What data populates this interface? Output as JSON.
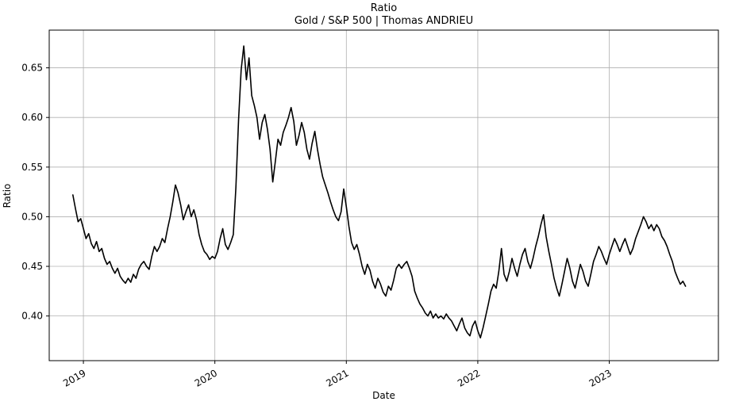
{
  "chart_data": {
    "type": "line",
    "title": "Ratio",
    "subtitle": "Gold / S&P 500 | Thomas ANDRIEU",
    "xlabel": "Date",
    "ylabel": "Ratio",
    "xlim": [
      2018.74,
      2023.83
    ],
    "ylim": [
      0.355,
      0.688
    ],
    "xticks": [
      2019,
      2020,
      2021,
      2022,
      2023
    ],
    "yticks": [
      0.4,
      0.45,
      0.5,
      0.55,
      0.6,
      0.65
    ],
    "grid": true,
    "legend": "none",
    "line_color": "#000000",
    "grid_color": "#b0b0b0",
    "frame_color": "#000000",
    "series": [
      {
        "name": "Gold / S&P 500 ratio",
        "x_start": 2018.92,
        "x_step": 0.02,
        "values": [
          0.522,
          0.508,
          0.495,
          0.498,
          0.488,
          0.478,
          0.483,
          0.473,
          0.468,
          0.475,
          0.465,
          0.468,
          0.458,
          0.452,
          0.455,
          0.448,
          0.443,
          0.448,
          0.44,
          0.436,
          0.433,
          0.438,
          0.434,
          0.442,
          0.438,
          0.447,
          0.452,
          0.455,
          0.45,
          0.447,
          0.46,
          0.47,
          0.465,
          0.47,
          0.478,
          0.474,
          0.488,
          0.5,
          0.515,
          0.532,
          0.524,
          0.512,
          0.497,
          0.505,
          0.512,
          0.5,
          0.507,
          0.497,
          0.482,
          0.472,
          0.465,
          0.462,
          0.457,
          0.46,
          0.458,
          0.465,
          0.478,
          0.488,
          0.472,
          0.467,
          0.474,
          0.482,
          0.53,
          0.597,
          0.648,
          0.672,
          0.638,
          0.66,
          0.622,
          0.612,
          0.6,
          0.578,
          0.595,
          0.603,
          0.588,
          0.568,
          0.535,
          0.556,
          0.578,
          0.572,
          0.585,
          0.592,
          0.6,
          0.61,
          0.596,
          0.572,
          0.582,
          0.595,
          0.585,
          0.568,
          0.558,
          0.574,
          0.586,
          0.568,
          0.553,
          0.54,
          0.532,
          0.524,
          0.515,
          0.507,
          0.5,
          0.496,
          0.505,
          0.528,
          0.51,
          0.49,
          0.474,
          0.467,
          0.472,
          0.462,
          0.45,
          0.442,
          0.452,
          0.446,
          0.435,
          0.428,
          0.438,
          0.432,
          0.424,
          0.42,
          0.43,
          0.426,
          0.436,
          0.448,
          0.452,
          0.448,
          0.452,
          0.455,
          0.448,
          0.44,
          0.425,
          0.418,
          0.412,
          0.408,
          0.403,
          0.4,
          0.405,
          0.398,
          0.402,
          0.398,
          0.4,
          0.397,
          0.402,
          0.398,
          0.395,
          0.39,
          0.385,
          0.392,
          0.398,
          0.388,
          0.383,
          0.38,
          0.39,
          0.395,
          0.385,
          0.378,
          0.388,
          0.4,
          0.412,
          0.425,
          0.432,
          0.428,
          0.445,
          0.468,
          0.442,
          0.435,
          0.445,
          0.458,
          0.448,
          0.44,
          0.452,
          0.462,
          0.468,
          0.455,
          0.448,
          0.458,
          0.47,
          0.48,
          0.492,
          0.502,
          0.48,
          0.465,
          0.452,
          0.438,
          0.428,
          0.42,
          0.432,
          0.445,
          0.458,
          0.448,
          0.435,
          0.428,
          0.44,
          0.452,
          0.445,
          0.435,
          0.43,
          0.442,
          0.455,
          0.462,
          0.47,
          0.465,
          0.458,
          0.452,
          0.462,
          0.47,
          0.478,
          0.472,
          0.465,
          0.472,
          0.478,
          0.47,
          0.462,
          0.468,
          0.478,
          0.485,
          0.492,
          0.5,
          0.495,
          0.488,
          0.492,
          0.486,
          0.492,
          0.488,
          0.48,
          0.476,
          0.47,
          0.462,
          0.455,
          0.445,
          0.438,
          0.432,
          0.435,
          0.43
        ]
      }
    ]
  }
}
